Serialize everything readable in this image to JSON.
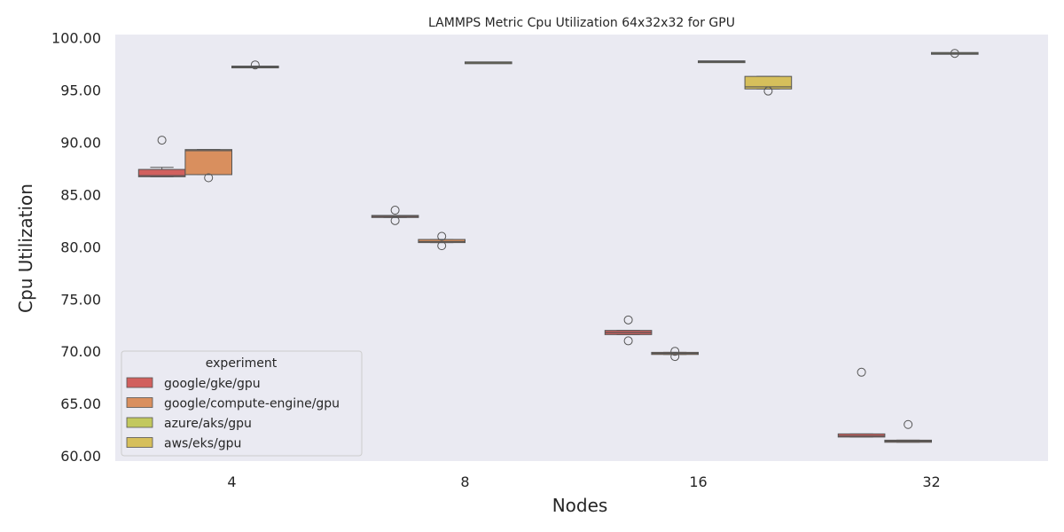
{
  "chart_data": {
    "type": "box",
    "title": "LAMMPS Metric Cpu Utilization 64x32x32 for GPU",
    "xlabel": "Nodes",
    "ylabel": "Cpu Utilization",
    "categories": [
      "4",
      "8",
      "16",
      "32"
    ],
    "ylim": [
      59.5,
      100.3
    ],
    "yticks": [
      "60.00",
      "65.00",
      "70.00",
      "75.00",
      "80.00",
      "85.00",
      "90.00",
      "95.00",
      "100.00"
    ],
    "grid": false,
    "legend": {
      "title": "experiment",
      "placement": "lower-left"
    },
    "series": [
      {
        "name": "google/gke/gpu",
        "color": "#d1605e",
        "boxes": [
          {
            "category": "4",
            "q1": 86.7,
            "median": 86.8,
            "q3": 87.4,
            "whisker_low": 86.7,
            "whisker_high": 87.6,
            "outliers": [
              90.2
            ]
          },
          {
            "category": "8",
            "q1": 82.8,
            "median": 82.9,
            "q3": 83.0,
            "whisker_low": 82.8,
            "whisker_high": 83.0,
            "outliers": [
              83.5,
              82.5
            ]
          },
          {
            "category": "16",
            "q1": 71.6,
            "median": 71.8,
            "q3": 72.0,
            "whisker_low": 71.6,
            "whisker_high": 72.0,
            "outliers": [
              73.0,
              71.0
            ]
          },
          {
            "category": "32",
            "q1": 61.8,
            "median": 61.9,
            "q3": 62.1,
            "whisker_low": 61.8,
            "whisker_high": 62.1,
            "outliers": [
              68.0
            ]
          }
        ]
      },
      {
        "name": "google/compute-engine/gpu",
        "color": "#d98f5e",
        "boxes": [
          {
            "category": "4",
            "q1": 86.9,
            "median": 89.2,
            "q3": 89.3,
            "whisker_low": 86.9,
            "whisker_high": 89.3,
            "outliers": [
              86.6
            ]
          },
          {
            "category": "8",
            "q1": 80.4,
            "median": 80.5,
            "q3": 80.7,
            "whisker_low": 80.4,
            "whisker_high": 80.7,
            "outliers": [
              81.0,
              80.1
            ]
          },
          {
            "category": "16",
            "q1": 69.7,
            "median": 69.8,
            "q3": 69.9,
            "whisker_low": 69.7,
            "whisker_high": 69.9,
            "outliers": [
              70.0,
              69.5
            ]
          },
          {
            "category": "32",
            "q1": 61.3,
            "median": 61.4,
            "q3": 61.5,
            "whisker_low": 61.3,
            "whisker_high": 61.5,
            "outliers": [
              63.0
            ]
          }
        ]
      },
      {
        "name": "azure/aks/gpu",
        "color": "#c2c85e",
        "boxes": [
          {
            "category": "4",
            "q1": 97.2,
            "median": 97.2,
            "q3": 97.2,
            "whisker_low": 97.2,
            "whisker_high": 97.2,
            "outliers": [
              97.4
            ]
          },
          {
            "category": "8",
            "q1": 97.6,
            "median": 97.6,
            "q3": 97.6,
            "whisker_low": 97.6,
            "whisker_high": 97.6,
            "outliers": []
          },
          {
            "category": "16",
            "q1": 97.7,
            "median": 97.7,
            "q3": 97.7,
            "whisker_low": 97.7,
            "whisker_high": 97.7,
            "outliers": []
          },
          {
            "category": "32",
            "q1": 98.5,
            "median": 98.5,
            "q3": 98.5,
            "whisker_low": 98.5,
            "whisker_high": 98.5,
            "outliers": [
              98.5
            ]
          }
        ]
      },
      {
        "name": "aws/eks/gpu",
        "color": "#d6bf5b",
        "boxes": [
          {
            "category": "16",
            "q1": 95.1,
            "median": 95.3,
            "q3": 96.3,
            "whisker_low": 95.1,
            "whisker_high": 96.3,
            "outliers": [
              94.9
            ]
          }
        ]
      }
    ]
  }
}
